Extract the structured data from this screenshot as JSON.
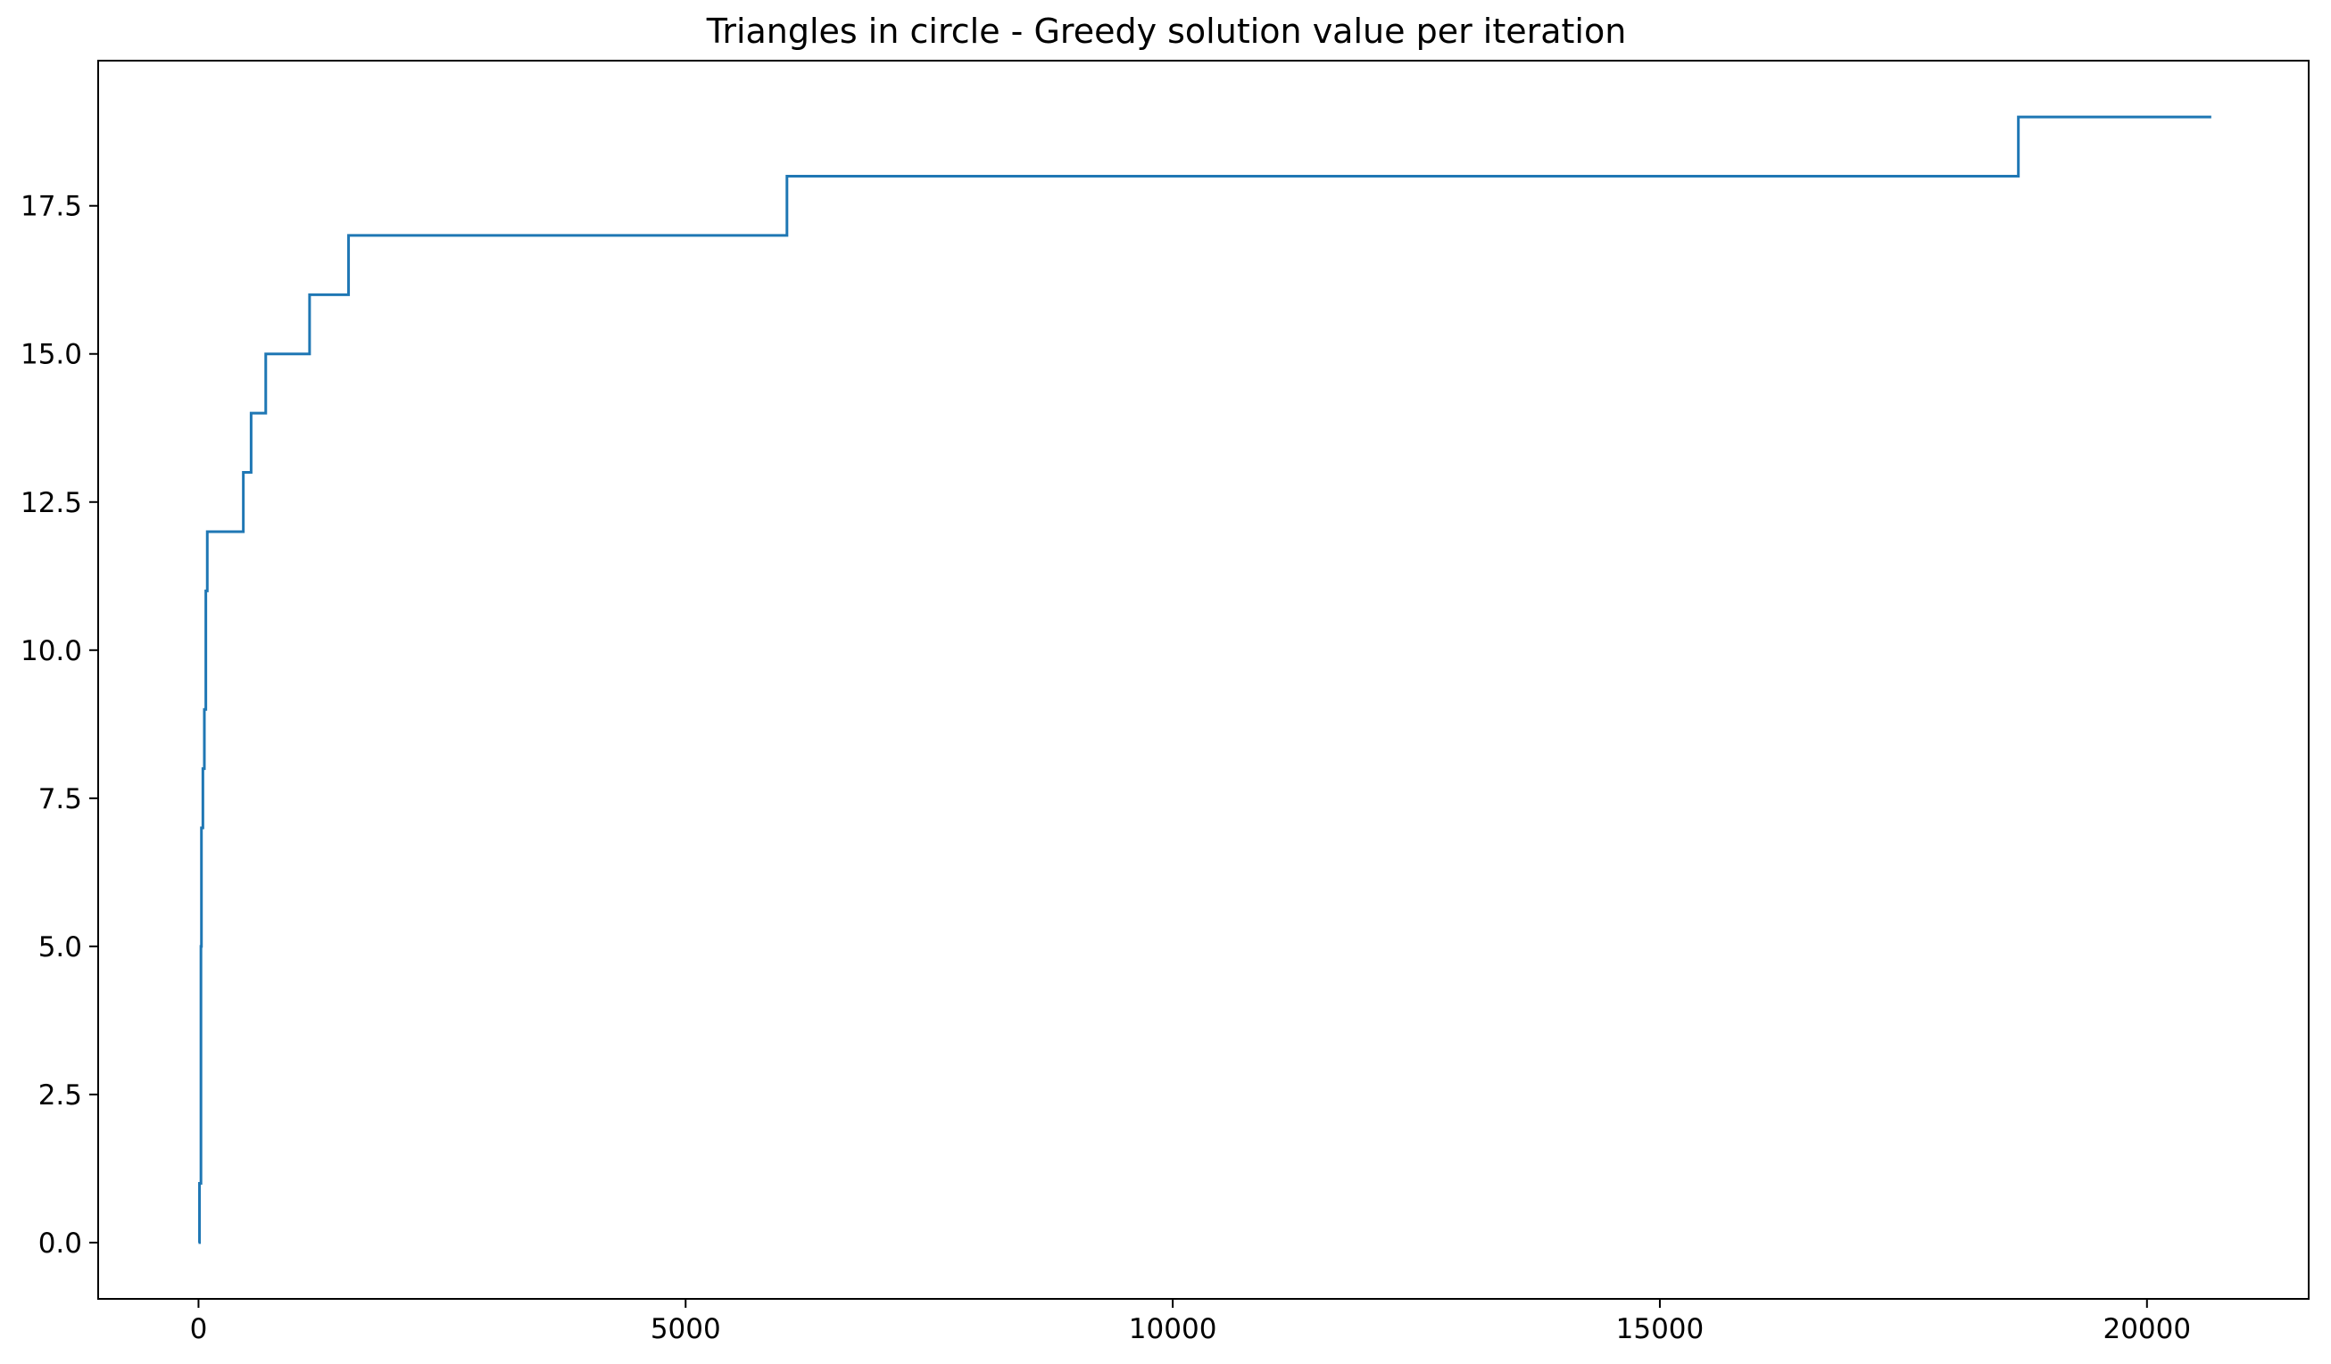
{
  "chart_data": {
    "type": "line",
    "title": "Triangles in circle - Greedy solution value per iteration",
    "xlabel": "",
    "ylabel": "",
    "xlim": [
      -1030,
      21660
    ],
    "ylim": [
      -0.95,
      19.95
    ],
    "xticks": [
      0,
      5000,
      10000,
      15000,
      20000
    ],
    "xtick_labels": [
      "0",
      "5000",
      "10000",
      "15000",
      "20000"
    ],
    "yticks": [
      0.0,
      2.5,
      5.0,
      7.5,
      10.0,
      12.5,
      15.0,
      17.5
    ],
    "ytick_labels": [
      "0.0",
      "2.5",
      "5.0",
      "7.5",
      "10.0",
      "12.5",
      "15.0",
      "17.5"
    ],
    "grid": false,
    "legend": "none",
    "series": [
      {
        "color": "#1f77b4",
        "drawstyle": "steps-post",
        "x": [
          0,
          10,
          25,
          30,
          45,
          60,
          75,
          90,
          460,
          540,
          690,
          1140,
          1540,
          6040,
          18680,
          20660
        ],
        "y": [
          0,
          1,
          5,
          7,
          8,
          9,
          11,
          12,
          13,
          14,
          15,
          16,
          17,
          18,
          19,
          19
        ]
      }
    ]
  }
}
